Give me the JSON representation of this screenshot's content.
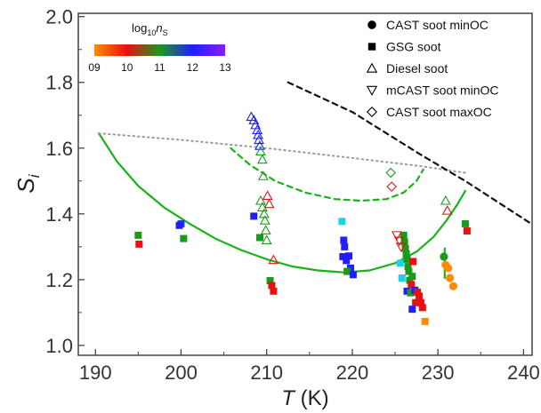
{
  "chart_data": {
    "type": "scatter",
    "x_axis": {
      "label_italic": "T",
      "label_rest": " (K)",
      "range": [
        188,
        241
      ],
      "ticks": [
        190,
        200,
        210,
        220,
        230,
        240
      ],
      "tick_labels": [
        "190",
        "200",
        "210",
        "220",
        "230",
        "240"
      ]
    },
    "y_axis": {
      "label_main": "S",
      "label_sub": "i",
      "range": [
        0.97,
        2.01
      ],
      "ticks": [
        1.0,
        1.2,
        1.4,
        1.6,
        1.8,
        2.0
      ],
      "tick_labels": [
        "1.0",
        "1.2",
        "1.4",
        "1.6",
        "1.8",
        "2.0"
      ]
    },
    "grid": false,
    "colorbar": {
      "title_main": "log",
      "title_sub": "10",
      "title_var": "n",
      "title_var_sub": "S",
      "tick_labels": [
        "09",
        "10",
        "11",
        "12",
        "13"
      ],
      "range": [
        9,
        13
      ],
      "gradient_colors": [
        "#ff8c00",
        "#e81010",
        "#1a9a1a",
        "#1f1fff",
        "#8a1aff"
      ]
    },
    "legend": {
      "placement": "top-right",
      "entries": [
        {
          "marker": "filled-circle",
          "label": "CAST soot minOC"
        },
        {
          "marker": "filled-square",
          "label": "GSG soot"
        },
        {
          "marker": "open-triangle-up",
          "label": "Diesel soot"
        },
        {
          "marker": "open-triangle-down",
          "label": "mCAST soot minOC"
        },
        {
          "marker": "open-diamond",
          "label": "CAST soot maxOC"
        }
      ]
    },
    "series": [
      {
        "marker": "filled-square",
        "points": [
          {
            "x": 195.0,
            "y": 1.335,
            "color": "#1a9a1a"
          },
          {
            "x": 195.1,
            "y": 1.308,
            "color": "#e81010"
          },
          {
            "x": 200.0,
            "y": 1.37,
            "color": "#1f3fd8"
          },
          {
            "x": 199.8,
            "y": 1.365,
            "color": "#1f1fff"
          },
          {
            "x": 200.3,
            "y": 1.325,
            "color": "#1a9a1a"
          },
          {
            "x": 208.5,
            "y": 1.393,
            "color": "#1f1fff"
          },
          {
            "x": 209.2,
            "y": 1.328,
            "color": "#1a9a1a"
          },
          {
            "x": 210.4,
            "y": 1.197,
            "color": "#1a9a1a"
          },
          {
            "x": 210.6,
            "y": 1.182,
            "color": "#e81010"
          },
          {
            "x": 210.8,
            "y": 1.165,
            "color": "#e81010"
          },
          {
            "x": 218.8,
            "y": 1.377,
            "color": "#1ad2f0"
          },
          {
            "x": 219.0,
            "y": 1.32,
            "color": "#1f1fff"
          },
          {
            "x": 219.1,
            "y": 1.3,
            "color": "#1f1fff"
          },
          {
            "x": 218.9,
            "y": 1.27,
            "color": "#1f1fff"
          },
          {
            "x": 219.3,
            "y": 1.258,
            "color": "#1f1fff"
          },
          {
            "x": 219.6,
            "y": 1.272,
            "color": "#1f1fff"
          },
          {
            "x": 219.8,
            "y": 1.235,
            "color": "#1f1fff"
          },
          {
            "x": 219.4,
            "y": 1.225,
            "color": "#1a9a1a"
          },
          {
            "x": 220.1,
            "y": 1.215,
            "color": "#1f1fff"
          },
          {
            "x": 225.6,
            "y": 1.25,
            "color": "#1ad2f0"
          },
          {
            "x": 225.8,
            "y": 1.205,
            "color": "#1ad2f0"
          },
          {
            "x": 226.0,
            "y": 1.335,
            "color": "#1a9a1a"
          },
          {
            "x": 226.1,
            "y": 1.315,
            "color": "#1a9a1a"
          },
          {
            "x": 226.2,
            "y": 1.295,
            "color": "#1a9a1a"
          },
          {
            "x": 226.3,
            "y": 1.278,
            "color": "#1a9a1a"
          },
          {
            "x": 226.4,
            "y": 1.262,
            "color": "#1a9a1a"
          },
          {
            "x": 226.5,
            "y": 1.24,
            "color": "#1a9a1a"
          },
          {
            "x": 226.6,
            "y": 1.225,
            "color": "#1a9a1a"
          },
          {
            "x": 226.7,
            "y": 1.198,
            "color": "#1a9a1a"
          },
          {
            "x": 226.4,
            "y": 1.165,
            "color": "#1f1fff"
          },
          {
            "x": 226.8,
            "y": 1.16,
            "color": "#1a9a1a"
          },
          {
            "x": 227.0,
            "y": 1.21,
            "color": "#1a9a1a"
          },
          {
            "x": 227.1,
            "y": 1.255,
            "color": "#e81010"
          },
          {
            "x": 226.9,
            "y": 1.185,
            "color": "#e81010"
          },
          {
            "x": 227.3,
            "y": 1.168,
            "color": "#1f1fff"
          },
          {
            "x": 227.4,
            "y": 1.13,
            "color": "#e81010"
          },
          {
            "x": 227.0,
            "y": 1.11,
            "color": "#1f1fff"
          },
          {
            "x": 227.6,
            "y": 1.162,
            "color": "#e81010"
          },
          {
            "x": 227.8,
            "y": 1.15,
            "color": "#e81010"
          },
          {
            "x": 228.0,
            "y": 1.13,
            "color": "#e81010"
          },
          {
            "x": 228.2,
            "y": 1.115,
            "color": "#e81010"
          },
          {
            "x": 228.5,
            "y": 1.073,
            "color": "#ff8c00"
          },
          {
            "x": 233.2,
            "y": 1.37,
            "color": "#1a9a1a"
          },
          {
            "x": 233.4,
            "y": 1.348,
            "color": "#e81010"
          }
        ]
      },
      {
        "marker": "filled-circle",
        "points": [
          {
            "x": 230.7,
            "y": 1.27,
            "color": "#1a9a1a"
          },
          {
            "x": 230.9,
            "y": 1.245,
            "color": "#ff8c00"
          },
          {
            "x": 231.2,
            "y": 1.235,
            "color": "#ff8c00"
          },
          {
            "x": 231.4,
            "y": 1.205,
            "color": "#ff8c00"
          },
          {
            "x": 231.8,
            "y": 1.18,
            "color": "#ff8c00"
          }
        ]
      },
      {
        "marker": "open-triangle-up",
        "points": [
          {
            "x": 208.2,
            "y": 1.695,
            "color": "#1f1fff"
          },
          {
            "x": 208.5,
            "y": 1.685,
            "color": "#1f1fff"
          },
          {
            "x": 208.7,
            "y": 1.67,
            "color": "#1f1fff"
          },
          {
            "x": 208.9,
            "y": 1.655,
            "color": "#1f1fff"
          },
          {
            "x": 209.0,
            "y": 1.64,
            "color": "#1f1fff"
          },
          {
            "x": 209.1,
            "y": 1.625,
            "color": "#1f1fff"
          },
          {
            "x": 209.2,
            "y": 1.607,
            "color": "#1f1fff"
          },
          {
            "x": 209.3,
            "y": 1.59,
            "color": "#1a9a1a"
          },
          {
            "x": 209.5,
            "y": 1.565,
            "color": "#1a9a1a"
          },
          {
            "x": 209.6,
            "y": 1.515,
            "color": "#1a9a1a"
          },
          {
            "x": 209.3,
            "y": 1.44,
            "color": "#1a9a1a"
          },
          {
            "x": 209.5,
            "y": 1.42,
            "color": "#1a9a1a"
          },
          {
            "x": 209.7,
            "y": 1.4,
            "color": "#1a9a1a"
          },
          {
            "x": 209.8,
            "y": 1.38,
            "color": "#1a9a1a"
          },
          {
            "x": 209.9,
            "y": 1.35,
            "color": "#1a9a1a"
          },
          {
            "x": 210.0,
            "y": 1.32,
            "color": "#1a9a1a"
          },
          {
            "x": 210.1,
            "y": 1.455,
            "color": "#e81010"
          },
          {
            "x": 210.3,
            "y": 1.43,
            "color": "#e81010"
          },
          {
            "x": 210.8,
            "y": 1.26,
            "color": "#e81010"
          },
          {
            "x": 230.9,
            "y": 1.44,
            "color": "#1a9a1a"
          },
          {
            "x": 231.1,
            "y": 1.41,
            "color": "#e81010"
          }
        ]
      },
      {
        "marker": "open-triangle-down",
        "points": [
          {
            "x": 225.2,
            "y": 1.335,
            "color": "#e81010"
          },
          {
            "x": 225.5,
            "y": 1.318,
            "color": "#e81010"
          },
          {
            "x": 225.7,
            "y": 1.3,
            "color": "#e81010"
          }
        ]
      },
      {
        "marker": "open-diamond",
        "points": [
          {
            "x": 224.5,
            "y": 1.525,
            "color": "#1a9a1a"
          },
          {
            "x": 224.6,
            "y": 1.483,
            "color": "#e81010"
          }
        ]
      }
    ],
    "lines": [
      {
        "style": "solid",
        "color": "#1ab21a",
        "points": [
          [
            190.4,
            1.645
          ],
          [
            192.5,
            1.56
          ],
          [
            195.0,
            1.485
          ],
          [
            198.0,
            1.42
          ],
          [
            201.0,
            1.37
          ],
          [
            204.0,
            1.325
          ],
          [
            207.0,
            1.29
          ],
          [
            210.0,
            1.262
          ],
          [
            213.0,
            1.24
          ],
          [
            216.0,
            1.228
          ],
          [
            219.0,
            1.222
          ],
          [
            222.0,
            1.228
          ],
          [
            225.0,
            1.25
          ],
          [
            227.5,
            1.285
          ],
          [
            229.5,
            1.33
          ],
          [
            231.0,
            1.38
          ],
          [
            232.3,
            1.43
          ],
          [
            233.2,
            1.47
          ]
        ]
      },
      {
        "style": "solid",
        "color": "#1ab21a",
        "points": [
          [
            230.8,
            1.295
          ],
          [
            230.8,
            1.205
          ]
        ]
      },
      {
        "style": "dashed",
        "color": "#1ab21a",
        "points": [
          [
            205.8,
            1.6
          ],
          [
            208.0,
            1.55
          ],
          [
            211.0,
            1.5
          ],
          [
            214.5,
            1.465
          ],
          [
            218.0,
            1.445
          ],
          [
            221.0,
            1.44
          ],
          [
            224.0,
            1.445
          ],
          [
            226.0,
            1.465
          ],
          [
            227.5,
            1.5
          ],
          [
            228.3,
            1.535
          ]
        ]
      },
      {
        "style": "dotted",
        "color": "#9a9a9a",
        "points": [
          [
            190.4,
            1.645
          ],
          [
            200.0,
            1.625
          ],
          [
            210.0,
            1.6
          ],
          [
            220.0,
            1.57
          ],
          [
            228.0,
            1.545
          ],
          [
            233.2,
            1.525
          ]
        ]
      },
      {
        "style": "dashed",
        "color": "#111111",
        "points": [
          [
            212.5,
            1.8
          ],
          [
            220.0,
            1.71
          ],
          [
            228.0,
            1.58
          ],
          [
            233.2,
            1.5
          ],
          [
            240.9,
            1.37
          ]
        ]
      }
    ]
  }
}
